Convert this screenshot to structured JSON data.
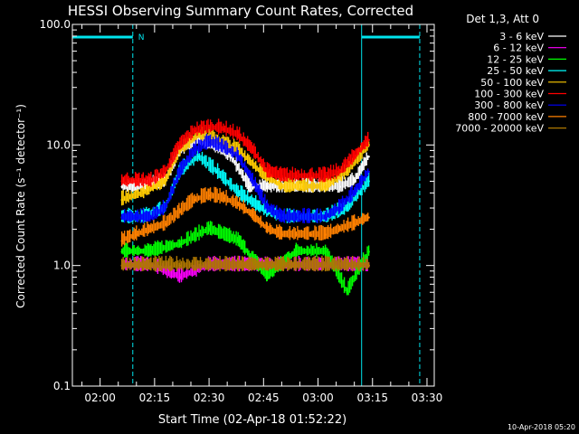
{
  "chart_data": {
    "type": "line",
    "title": "HESSI Observing Summary Count Rates, Corrected",
    "xlabel": "Start Time (02-Apr-18 01:52:22)",
    "ylabel": "Corrected Count Rate (s⁻¹ detector⁻¹)",
    "yscale": "log",
    "ylim": [
      0.1,
      100.0
    ],
    "xlim": [
      "01:52:22",
      "03:32"
    ],
    "y_ticks": [
      "0.1",
      "1.0",
      "10.0",
      "100.0"
    ],
    "x_ticks": [
      "02:00",
      "02:15",
      "02:30",
      "02:45",
      "03:00",
      "03:15",
      "03:30"
    ],
    "legend_header": "Det 1,3, Att 0",
    "legend_position": "right",
    "footer_timestamp": "10-Apr-2018 05:20",
    "night_flag_label": "N",
    "markers": {
      "night_start": "02:09",
      "night_end": "03:12",
      "saa_end_boundary": "03:28",
      "data_start": "01:52:22"
    },
    "series": [
      {
        "name": "3 - 6 keV",
        "color": "#ffffff",
        "x": [
          "02:06",
          "02:12",
          "02:18",
          "02:22",
          "02:27",
          "02:31",
          "02:36",
          "02:41",
          "02:46",
          "02:51",
          "02:56",
          "03:01",
          "03:06",
          "03:10",
          "03:14"
        ],
        "y": [
          4.5,
          4.5,
          5,
          9,
          11,
          10,
          8,
          4.5,
          4.5,
          4.5,
          4.5,
          4.5,
          4.5,
          5,
          8
        ]
      },
      {
        "name": "6 - 12 keV",
        "color": "#ff00ff",
        "x": [
          "02:06",
          "02:14",
          "02:22",
          "02:30",
          "02:38",
          "02:46",
          "02:54",
          "03:02",
          "03:08",
          "03:14"
        ],
        "y": [
          1.0,
          1.0,
          0.8,
          1.0,
          1.0,
          1.0,
          1.0,
          1.0,
          1.0,
          1.0
        ]
      },
      {
        "name": "12 - 25 keV",
        "color": "#00ff00",
        "x": [
          "02:06",
          "02:14",
          "02:22",
          "02:30",
          "02:38",
          "02:46",
          "02:54",
          "03:02",
          "03:08",
          "03:14"
        ],
        "y": [
          1.3,
          1.3,
          1.5,
          2.0,
          1.6,
          0.8,
          1.3,
          1.3,
          0.6,
          1.3
        ]
      },
      {
        "name": "25 - 50 keV",
        "color": "#00ffff",
        "x": [
          "02:06",
          "02:12",
          "02:18",
          "02:22",
          "02:27",
          "02:32",
          "02:38",
          "02:44",
          "02:50",
          "02:56",
          "03:02",
          "03:08",
          "03:14"
        ],
        "y": [
          2.5,
          2.5,
          3,
          6,
          8,
          6,
          4,
          3,
          2.5,
          2.5,
          2.5,
          3,
          5
        ]
      },
      {
        "name": "50 - 100 keV",
        "color": "#ffcc00",
        "x": [
          "02:06",
          "02:12",
          "02:18",
          "02:22",
          "02:27",
          "02:32",
          "02:38",
          "02:44",
          "02:50",
          "02:56",
          "03:02",
          "03:08",
          "03:14"
        ],
        "y": [
          3.5,
          4,
          5,
          9,
          12,
          11,
          9,
          6,
          4.5,
          4.5,
          4.5,
          6,
          10
        ]
      },
      {
        "name": "100 - 300 keV",
        "color": "#ff0000",
        "x": [
          "02:06",
          "02:10",
          "02:14",
          "02:18",
          "02:22",
          "02:26",
          "02:30",
          "02:34",
          "02:38",
          "02:42",
          "02:46",
          "02:50",
          "02:54",
          "02:58",
          "03:02",
          "03:06",
          "03:10",
          "03:14"
        ],
        "y": [
          5,
          5,
          5,
          6,
          10,
          13,
          14,
          13.5,
          12,
          9,
          6,
          5.5,
          5.5,
          5.5,
          5.5,
          6,
          8,
          11
        ]
      },
      {
        "name": "300 - 800 keV",
        "color": "#0000ff",
        "x": [
          "02:06",
          "02:10",
          "02:14",
          "02:18",
          "02:22",
          "02:26",
          "02:30",
          "02:34",
          "02:38",
          "02:42",
          "02:46",
          "02:50",
          "02:54",
          "02:58",
          "03:02",
          "03:06",
          "03:10",
          "03:14"
        ],
        "y": [
          2.5,
          2.5,
          2.5,
          3,
          6,
          9,
          10.5,
          9.5,
          8,
          5,
          3,
          2.5,
          2.5,
          2.5,
          2.5,
          3,
          4,
          6
        ]
      },
      {
        "name": "800 - 7000 keV",
        "color": "#ff8000",
        "x": [
          "02:06",
          "02:10",
          "02:14",
          "02:18",
          "02:22",
          "02:26",
          "02:30",
          "02:34",
          "02:38",
          "02:42",
          "02:46",
          "02:50",
          "02:54",
          "02:58",
          "03:02",
          "03:06",
          "03:10",
          "03:14"
        ],
        "y": [
          1.6,
          1.8,
          2.0,
          2.2,
          2.8,
          3.5,
          3.8,
          3.6,
          3.2,
          2.6,
          2.0,
          1.8,
          1.8,
          1.8,
          1.8,
          2.0,
          2.2,
          2.5
        ]
      },
      {
        "name": "7000 - 20000 keV",
        "color": "#b07800",
        "x": [
          "02:06",
          "02:14",
          "02:22",
          "02:30",
          "02:38",
          "02:46",
          "02:54",
          "03:02",
          "03:08",
          "03:14"
        ],
        "y": [
          1.0,
          1.0,
          1.0,
          1.0,
          1.0,
          1.0,
          1.0,
          1.0,
          1.0,
          1.0
        ]
      }
    ]
  }
}
